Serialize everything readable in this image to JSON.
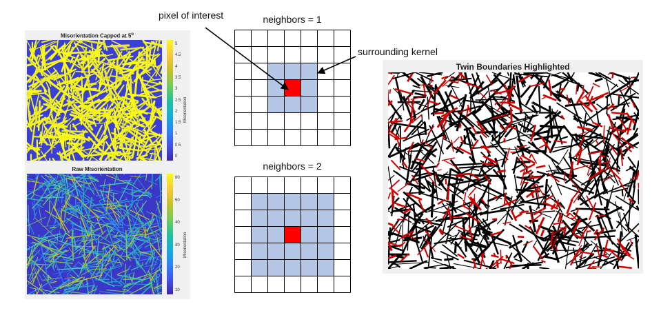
{
  "left_figure": {
    "top_plot": {
      "title": "Misorientation Capped at 5",
      "title_superscript": "o",
      "colorbar_label": "Misorientation",
      "colorbar_ticks": [
        "5",
        "4.5",
        "4",
        "3.5",
        "3",
        "2.5",
        "2",
        "1.5",
        "1",
        "0.5",
        "0"
      ]
    },
    "bottom_plot": {
      "title": "Raw Misorientation",
      "colorbar_label": "Misorientation",
      "colorbar_ticks": [
        "60",
        "50",
        "40",
        "30",
        "20",
        "10"
      ]
    }
  },
  "grids": [
    {
      "title": "neighbors = 1",
      "rows": 7,
      "cols": 7,
      "kernel_radius": 1
    },
    {
      "title": "neighbors = 2",
      "rows": 7,
      "cols": 7,
      "kernel_radius": 2
    }
  ],
  "annotations": {
    "pixel_of_interest": "pixel of interest",
    "surrounding_kernel": "surrounding kernel"
  },
  "right_figure": {
    "title": "Twin Boundaries Highlighted"
  },
  "colors": {
    "kernel_fill": "#b4c7e7",
    "center_fill": "#ff0000",
    "grid_line": "#000000",
    "parula_low": "#3e26a8",
    "parula_high": "#f9fb15",
    "twin_red": "#d00000"
  }
}
